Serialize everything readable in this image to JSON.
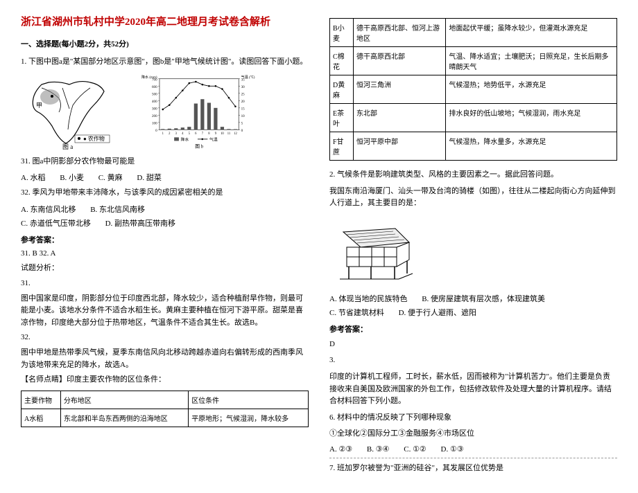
{
  "doc_title": "浙江省湖州市轧村中学2020年高二地理月考试卷含解析",
  "section1": "一、选择题(每小题2分，共52分)",
  "q1_intro": "1. 下图中图a是\"某国部分地区示意图\"，图b是\"甲地气候统计图\"。读图回答下面小题。",
  "map_labels": {
    "a": "图 a",
    "legend": "● 农作物"
  },
  "chart": {
    "title": "图 b",
    "yleft_label": "降水 (mm)",
    "yright_label": "气温 (℃)",
    "months": [
      1,
      2,
      3,
      4,
      5,
      6,
      7,
      8,
      9,
      10,
      11,
      12
    ],
    "yleft_ticks": [
      0,
      100,
      200,
      300,
      400,
      500,
      600,
      700
    ],
    "yright_ticks": [
      0,
      5,
      10,
      15,
      20,
      25,
      30,
      35
    ],
    "precip": [
      10,
      15,
      20,
      30,
      40,
      360,
      420,
      370,
      300,
      40,
      10,
      8
    ],
    "temp": [
      14,
      17,
      22,
      27,
      32,
      33,
      31,
      30,
      30,
      28,
      22,
      16
    ],
    "legend_precip": "降水",
    "legend_temp": "气温",
    "bar_color": "#555555",
    "line_color": "#000000"
  },
  "q31_stem": "31. 图a中阴影部分农作物最可能是",
  "q31_opts": [
    "A. 水稻",
    "B. 小麦",
    "C. 黄麻",
    "D. 甜菜"
  ],
  "q32_stem": "32. 季风为甲地带来丰沛降水，与该季风的成因紧密相关的是",
  "q32_opts": [
    "A. 东南信风北移",
    "B. 东北信风南移",
    "C. 赤道低气压带北移",
    "D. 副热带高压带南移"
  ],
  "ref_answer_label": "参考答案：",
  "ans1": "31. B    32. A",
  "analysis_label": "试题分析：",
  "ana31_label": "31.",
  "ana31": "图中国家是印度，阴影部分位于印度西北部，降水较少，适合种植耐旱作物，则最可能是小麦。该地水分条件不适合水稻生长。黄麻主要种植在恒河下游平原。甜菜是喜凉作物，印度绝大部分位于热带地区，气温条件不适合其生长。故选B。",
  "ana32_label": "32.",
  "ana32": "图中甲地是热带季风气候，夏季东南信风向北移动跨越赤道向右偏转形成的西南季风为该地带来充足的降水，故选A。",
  "teacher_note": "【名师点睛】印度主要农作物的区位条件：",
  "crop_table": {
    "headers": [
      "主要作物",
      "分布地区",
      "区位条件"
    ],
    "rows": [
      [
        "A水稻",
        "东北部和半岛东西两侧的沿海地区",
        "平原地形；气候湿润，降水较多"
      ],
      [
        "B小麦",
        "德干高原西北部、恒河上游地区",
        "地面起伏平缓；虽降水较少，但灌溉水源充足"
      ],
      [
        "C棉花",
        "德干高原西北部",
        "气温、降水适宜；土壤肥沃；日照充足，生长后期多晴朗天气"
      ],
      [
        "D黄麻",
        "恒河三角洲",
        "气候湿热；地势低平，水源充足"
      ],
      [
        "E茶叶",
        "东北部",
        "排水良好的低山坡地；气候湿润，雨水充足"
      ],
      [
        "F甘蔗",
        "恒河平原中部",
        "气候湿热，降水量多，水源充足"
      ]
    ]
  },
  "q2_intro": "2. 气候条件是影响建筑类型、风格的主要因素之一。据此回答问题。",
  "q2_body": "我国东南沿海厦门、汕头一带及台湾的骑楼（如图），往往从二楼起向街心方向延伸到人行道上，其主要目的是：",
  "q2_opts": [
    "A. 体现当地的民族特色",
    "B. 使房屋建筑有层次感，体现建筑美",
    "C. 节省建筑材料",
    "D. 便于行人避雨、遮阳"
  ],
  "ans2": "D",
  "q3_label": "3.",
  "q3_intro": "印度的计算机工程师，工时长，薪水低，因而被称为\"计算机苦力\"。他们主要是负责接收来自美国及欧洲国家的外包工作，包括修改软件及处理大量的计算机程序。请结合材料回答下列小题。",
  "q3_6_stem": "6.  材料中的情况反映了下列哪种现象",
  "q3_6_sub": "①全球化②国际分工③金融服务④市场区位",
  "q3_6_opts": [
    "A. ②③",
    "B. ③④",
    "C. ①②",
    "D. ①③"
  ],
  "q3_7_stem": "7.  班加罗尔被誉为\"亚洲的硅谷\"，其发展区位优势是"
}
